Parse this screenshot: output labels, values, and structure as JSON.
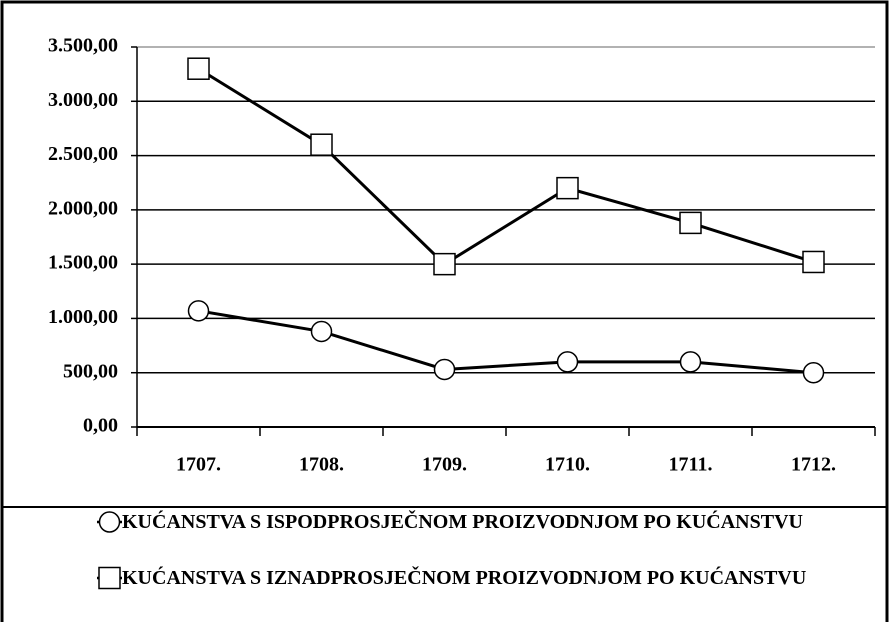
{
  "chart_data": {
    "type": "line",
    "categories": [
      "1707.",
      "1708.",
      "1709.",
      "1710.",
      "1711.",
      "1712."
    ],
    "series": [
      {
        "name": "KUĆANSTVA S ISPODPROSJEČNOM PROIZVODNJOM PO KUĆANSTVU",
        "color": "#000000",
        "marker": "circle",
        "values": [
          1070,
          880,
          530,
          600,
          600,
          500
        ]
      },
      {
        "name": "KUĆANSTVA S IZNADPROSJEČNOM PROIZVODNJOM PO KUĆANSTVU",
        "color": "#000000",
        "marker": "square",
        "values": [
          3300,
          2600,
          1500,
          2200,
          1880,
          1520
        ]
      }
    ],
    "ylim": [
      0,
      3500
    ],
    "yticks": [
      {
        "value": 0,
        "label": "0,00"
      },
      {
        "value": 500,
        "label": "500,00"
      },
      {
        "value": 1000,
        "label": "1.000,00"
      },
      {
        "value": 1500,
        "label": "1.500,00"
      },
      {
        "value": 2000,
        "label": "2.000,00"
      },
      {
        "value": 2500,
        "label": "2.500,00"
      },
      {
        "value": 3000,
        "label": "3.000,00"
      },
      {
        "value": 3500,
        "label": "3.500,00"
      }
    ],
    "grid": true,
    "legend": "bottom"
  }
}
